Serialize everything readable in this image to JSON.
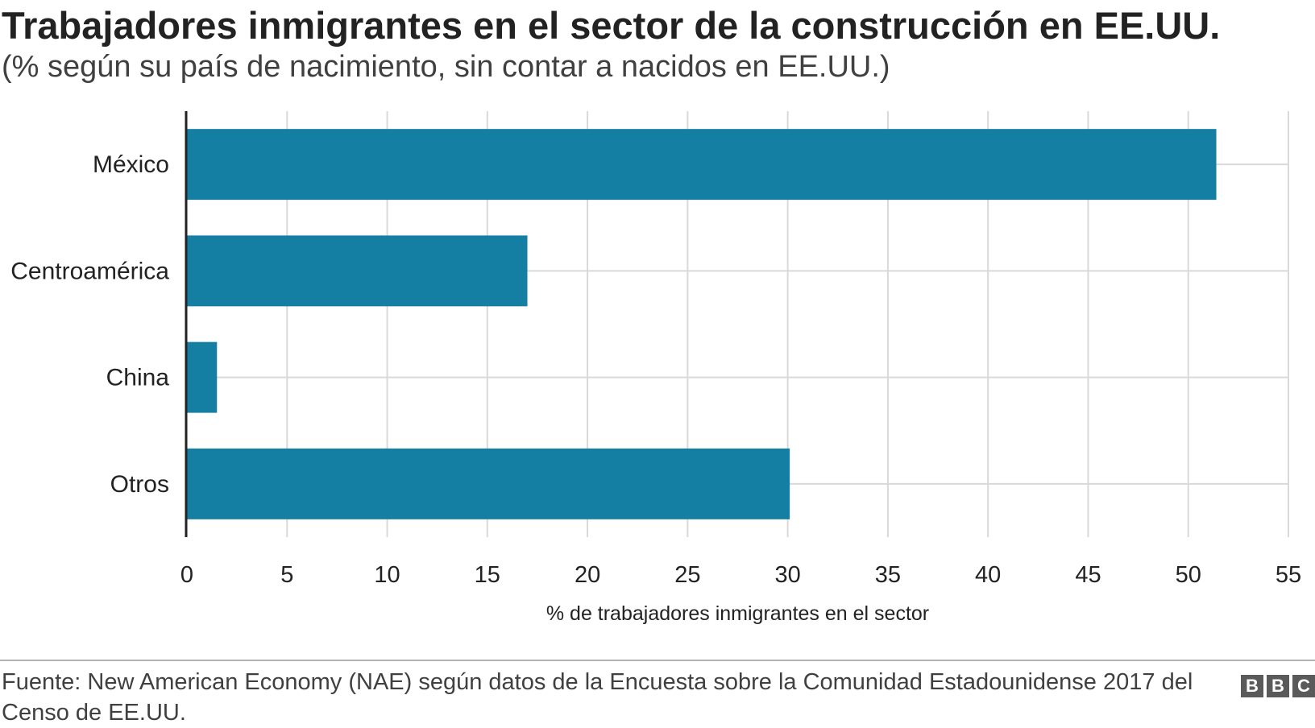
{
  "header": {
    "title": "Trabajadores inmigrantes en el sector de la construcción en EE.UU.",
    "subtitle": "(% según su país de nacimiento, sin contar a nacidos en EE.UU.)"
  },
  "chart_data": {
    "type": "bar",
    "orientation": "horizontal",
    "categories": [
      "México",
      "Centroamérica",
      "China",
      "Otros"
    ],
    "values": [
      51.4,
      17.0,
      1.5,
      30.1
    ],
    "xlabel": "% de trabajadores inmigrantes en el sector",
    "ylabel": "",
    "xlim": [
      0,
      55
    ],
    "xticks": [
      "0",
      "5",
      "10",
      "15",
      "20",
      "25",
      "30",
      "35",
      "40",
      "45",
      "50",
      "55"
    ],
    "grid": true,
    "bar_color": "#157fa3",
    "grid_color": "#d9d9d9"
  },
  "footer": {
    "source": "Fuente: New American Economy (NAE) según datos de la Encuesta sobre la Comunidad Estadounidense 2017 del Censo de EE.UU.",
    "logo": [
      "B",
      "B",
      "C"
    ],
    "logo_color": "#5a5a5a"
  }
}
